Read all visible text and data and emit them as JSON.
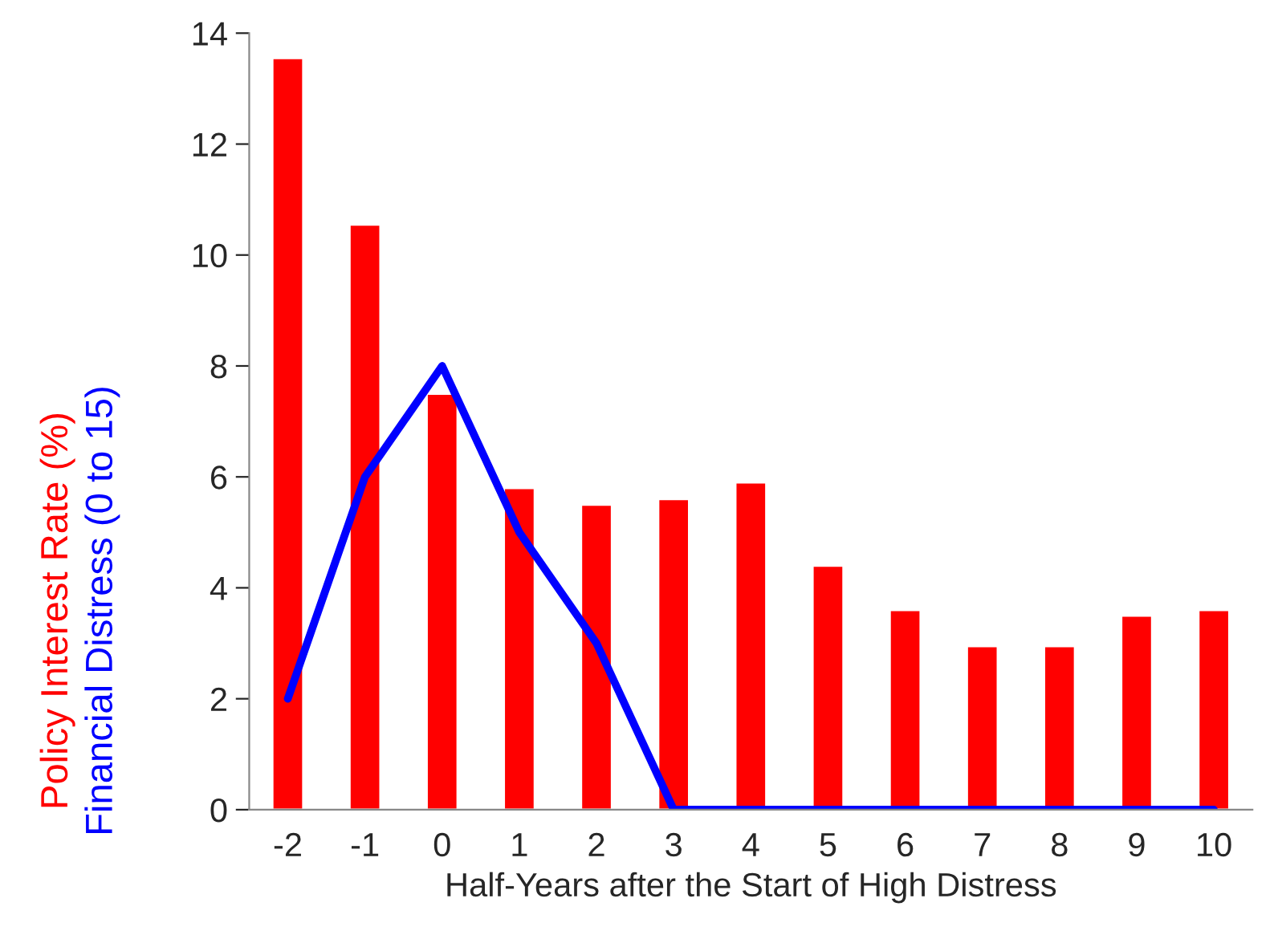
{
  "chart_data": {
    "type": "bar",
    "xlabel": "Half-Years after the Start of High Distress",
    "categories": [
      "-2",
      "-1",
      "0",
      "1",
      "2",
      "3",
      "4",
      "5",
      "6",
      "7",
      "8",
      "9",
      "10"
    ],
    "series": [
      {
        "name": "Policy Interest Rate (%)",
        "color": "#ff0000",
        "values": [
          13.55,
          10.55,
          7.5,
          5.8,
          5.5,
          5.6,
          5.9,
          4.4,
          3.6,
          2.95,
          2.95,
          3.5,
          3.6
        ]
      },
      {
        "name": "Financial Distress (0 to 15)",
        "color": "#0000ff",
        "type": "line",
        "values": [
          2,
          6,
          8,
          5,
          3,
          0,
          0,
          0,
          0,
          0,
          0,
          0,
          0
        ]
      }
    ],
    "ylim": [
      0,
      14
    ],
    "yticks": [
      0,
      2,
      4,
      6,
      8,
      10,
      12,
      14
    ],
    "grid": false,
    "legend": false
  }
}
